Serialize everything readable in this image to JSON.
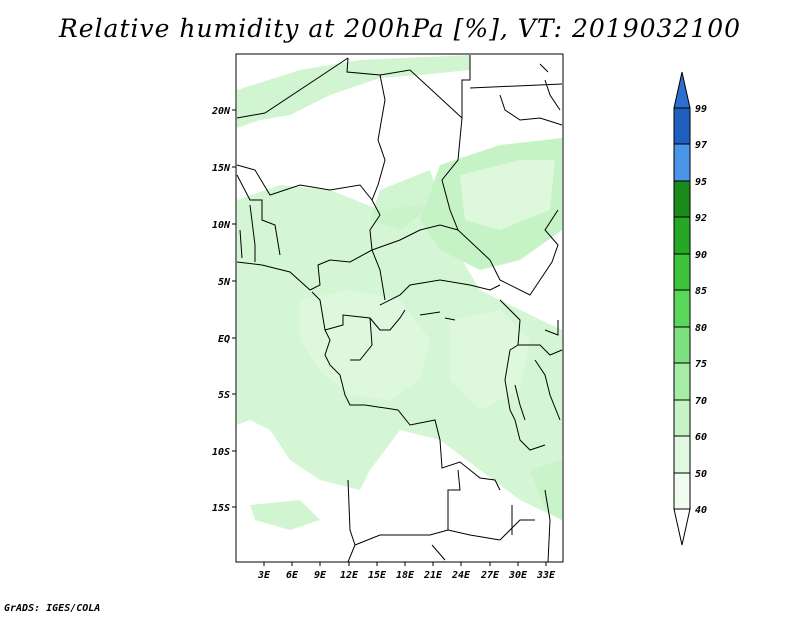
{
  "title": "Relative humidity at 200hPa [%], VT: 2019032100",
  "credit": "GrADS: IGES/COLA",
  "map": {
    "lat_labels": [
      "20N",
      "15N",
      "10N",
      "5N",
      "EQ",
      "5S",
      "10S",
      "15S"
    ],
    "lon_labels": [
      "3E",
      "6E",
      "9E",
      "12E",
      "15E",
      "18E",
      "21E",
      "24E",
      "27E",
      "30E",
      "33E"
    ]
  },
  "colorbar": {
    "labels": [
      "99",
      "97",
      "95",
      "92",
      "90",
      "85",
      "80",
      "75",
      "70",
      "60",
      "50",
      "40"
    ],
    "colors": [
      "#2c6fd0",
      "#4a95e8",
      "#1a8a1a",
      "#26a826",
      "#3cc43c",
      "#5ad65a",
      "#7ee07e",
      "#a6eba6",
      "#c6f3c6",
      "#dff8df",
      "#f1fcf1"
    ]
  }
}
